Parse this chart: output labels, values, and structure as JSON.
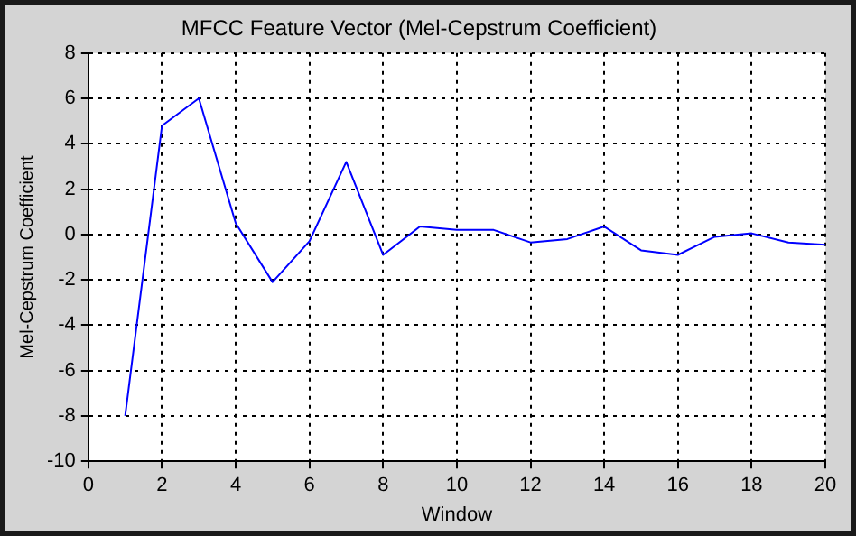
{
  "chart_data": {
    "type": "line",
    "title": "MFCC Feature Vector (Mel-Cepstrum Coefficient)",
    "xlabel": "Window",
    "ylabel": "Mel-Cepstrum Coefficient",
    "x": [
      1,
      2,
      3,
      4,
      5,
      6,
      7,
      8,
      9,
      10,
      11,
      12,
      13,
      14,
      15,
      16,
      17,
      18,
      19,
      20
    ],
    "series": [
      {
        "color": "#0000ff",
        "values": [
          -8,
          4.8,
          6,
          0.5,
          -2.1,
          -0.3,
          3.2,
          -0.9,
          0.35,
          0.2,
          0.2,
          -0.35,
          -0.2,
          0.35,
          -0.7,
          -0.9,
          -0.1,
          0.05,
          -0.35,
          -0.45
        ]
      }
    ],
    "xlim": [
      0,
      20
    ],
    "xticks": [
      0,
      2,
      4,
      6,
      8,
      10,
      12,
      14,
      16,
      18,
      20
    ],
    "ylim": [
      -10,
      8
    ],
    "yticks": [
      -10,
      -8,
      -6,
      -4,
      -2,
      0,
      2,
      4,
      6,
      8
    ],
    "grid": true,
    "legend": false,
    "marker": "none",
    "line_style": "solid"
  }
}
